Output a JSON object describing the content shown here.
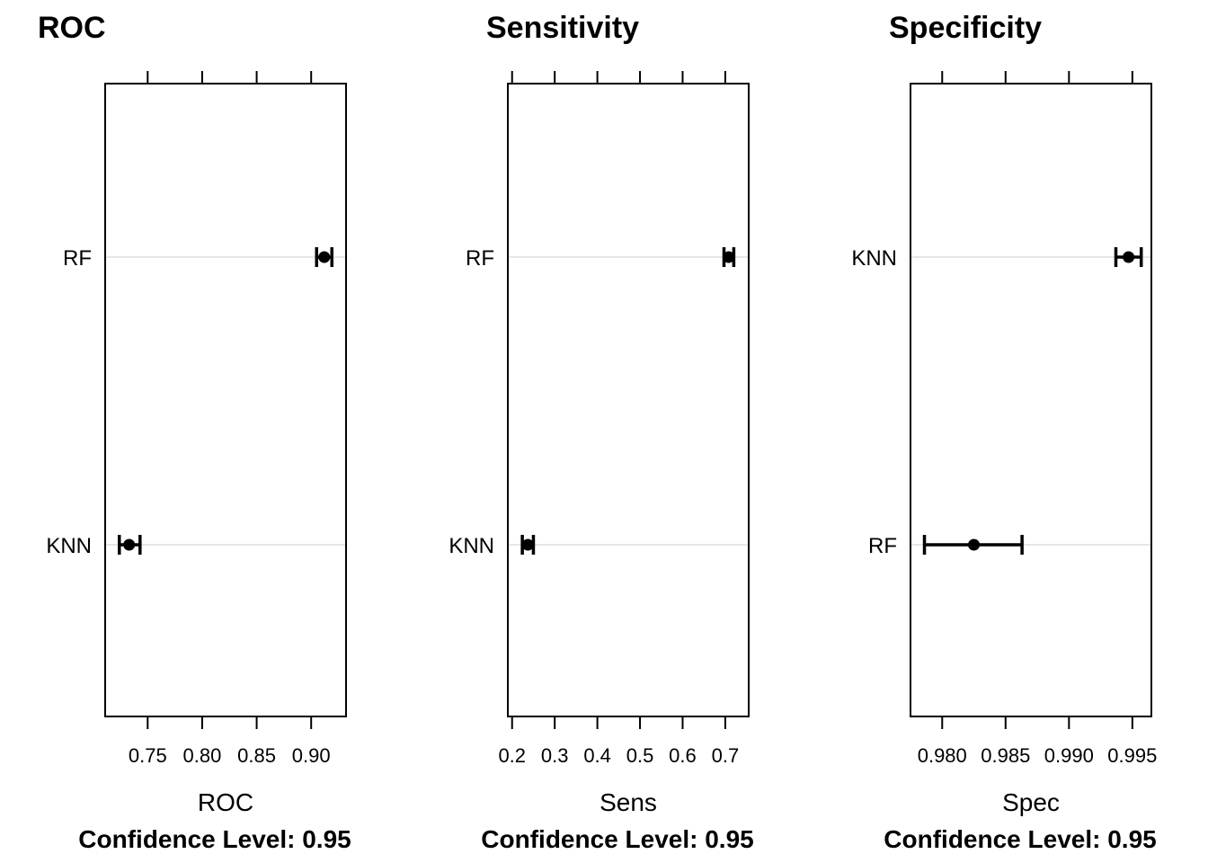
{
  "chart_data": [
    {
      "type": "dotplot",
      "title": "ROC",
      "xlabel": "ROC",
      "footnote": "Confidence Level: 0.95",
      "xlim": [
        0.711,
        0.932
      ],
      "ticks": [
        0.75,
        0.8,
        0.85,
        0.9
      ],
      "tick_labels": [
        "0.75",
        "0.80",
        "0.85",
        "0.90"
      ],
      "rows": [
        {
          "label": "RF",
          "estimate": 0.912,
          "lower": 0.905,
          "upper": 0.919
        },
        {
          "label": "KNN",
          "estimate": 0.733,
          "lower": 0.724,
          "upper": 0.743
        }
      ]
    },
    {
      "type": "dotplot",
      "title": "Sensitivity",
      "xlabel": "Sens",
      "footnote": "Confidence Level: 0.95",
      "xlim": [
        0.19,
        0.755
      ],
      "ticks": [
        0.2,
        0.3,
        0.4,
        0.5,
        0.6,
        0.7
      ],
      "tick_labels": [
        "0.2",
        "0.3",
        "0.4",
        "0.5",
        "0.6",
        "0.7"
      ],
      "rows": [
        {
          "label": "RF",
          "estimate": 0.708,
          "lower": 0.697,
          "upper": 0.72
        },
        {
          "label": "KNN",
          "estimate": 0.237,
          "lower": 0.224,
          "upper": 0.25
        }
      ]
    },
    {
      "type": "dotplot",
      "title": "Specificity",
      "xlabel": "Spec",
      "footnote": "Confidence Level: 0.95",
      "xlim": [
        0.9775,
        0.9965
      ],
      "ticks": [
        0.98,
        0.985,
        0.99,
        0.995
      ],
      "tick_labels": [
        "0.980",
        "0.985",
        "0.990",
        "0.995"
      ],
      "rows": [
        {
          "label": "KNN",
          "estimate": 0.9947,
          "lower": 0.9937,
          "upper": 0.9957
        },
        {
          "label": "RF",
          "estimate": 0.9825,
          "lower": 0.9786,
          "upper": 0.9863
        }
      ]
    }
  ]
}
